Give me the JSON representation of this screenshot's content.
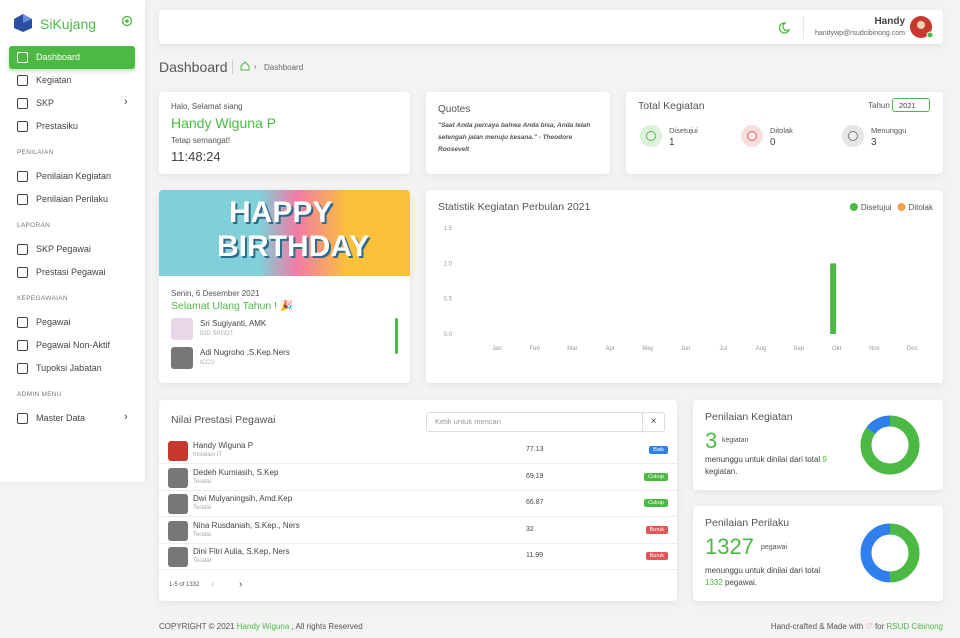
{
  "sidebar": {
    "brand": "SiKujang",
    "main": [
      {
        "label": "Dashboard",
        "active": true
      },
      {
        "label": "Kegiatan"
      },
      {
        "label": "SKP",
        "submenu": true
      },
      {
        "label": "Prestasiku"
      }
    ],
    "sections": [
      {
        "heading": "PENILAIAN",
        "items": [
          {
            "label": "Penilaian Kegiatan"
          },
          {
            "label": "Penilaian Perilaku"
          }
        ]
      },
      {
        "heading": "LAPORAN",
        "items": [
          {
            "label": "SKP Pegawai"
          },
          {
            "label": "Prestasi Pegawai"
          }
        ]
      },
      {
        "heading": "KEPEGAWAIAN",
        "items": [
          {
            "label": "Pegawai"
          },
          {
            "label": "Pegawai Non-Aktif"
          },
          {
            "label": "Tupoksi Jabatan"
          }
        ]
      },
      {
        "heading": "ADMIN MENU",
        "items": [
          {
            "label": "Master Data",
            "submenu": true
          }
        ]
      }
    ]
  },
  "header": {
    "user_name": "Handy",
    "user_email": "handywp@rsudcibinong.com"
  },
  "page": {
    "title": "Dashboard",
    "breadcrumb": "Dashboard"
  },
  "greeting": {
    "salutation": "Halo, Selamat siang",
    "name": "Handy Wiguna P",
    "message": "Tetap semangat!",
    "time": "11:48:24"
  },
  "quotes": {
    "title": "Quotes",
    "text": "\"Saat Anda percaya bahwa Anda bisa, Anda telah setengah jalan menuju kesana.\" - Theodore Roosevelt"
  },
  "total_kegiatan": {
    "title": "Total Kegiatan",
    "year_label": "Tahun",
    "year": "2021",
    "stats": [
      {
        "label": "Disetujui",
        "value": 1,
        "color": "#4cb944"
      },
      {
        "label": "Ditolak",
        "value": 0,
        "color": "#e05555"
      },
      {
        "label": "Menunggu",
        "value": 3,
        "color": "#777777"
      }
    ]
  },
  "birthday": {
    "banner": [
      "HAPPY",
      "BIRTHDAY"
    ],
    "date": "Senin, 6 Desember 2021",
    "heading": "Selamat Ulang Tahun ! 🎉",
    "people": [
      {
        "name": "Sri Sugiyanti, AMK",
        "unit": "IGD SPGDT"
      },
      {
        "name": "Adi Nugroho ,S.Kep.Ners",
        "unit": "ICCU"
      }
    ]
  },
  "chart_data": {
    "type": "bar",
    "title": "Statistik Kegiatan Perbulan 2021",
    "categories": [
      "Jan",
      "Feb",
      "Mar",
      "Apr",
      "May",
      "Jun",
      "Jul",
      "Aug",
      "Sep",
      "Okt",
      "Nov",
      "Des"
    ],
    "series": [
      {
        "name": "Disetujui",
        "color": "#4cb944",
        "values": [
          0,
          0,
          0,
          0,
          0,
          0,
          0,
          0,
          0,
          1,
          0,
          0
        ]
      },
      {
        "name": "Ditolak",
        "color": "#f0a04b",
        "values": [
          0,
          0,
          0,
          0,
          0,
          0,
          0,
          0,
          0,
          0,
          0,
          0
        ]
      }
    ],
    "ylim": [
      0,
      1.5
    ],
    "yticks": [
      {
        "value": 0,
        "label": "0.0"
      },
      {
        "value": 0.5,
        "label": "0.5"
      },
      {
        "value": 1,
        "label": "1.0"
      },
      {
        "value": 1.5,
        "label": "1.5"
      }
    ],
    "legend": "top-right"
  },
  "table": {
    "title": "Nilai Prestasi Pegawai",
    "search_placeholder": "Ketik untuk mencari",
    "clear": "×",
    "rows": [
      {
        "name": "Handy Wiguna P",
        "unit": "Instalasi IT",
        "score": 77.13,
        "badge": "Baik",
        "badge_color": "#2f80ed"
      },
      {
        "name": "Dedeh Kurniasih, S.Kep",
        "unit": "Teratai",
        "score": 69.19,
        "badge": "Cukup",
        "badge_color": "#4cb944"
      },
      {
        "name": "Dwi Mulyaningsih, Amd.Kep",
        "unit": "Teratai",
        "score": 66.87,
        "badge": "Cukup",
        "badge_color": "#4cb944"
      },
      {
        "name": "Nina Rusdaniah, S.Kep., Ners",
        "unit": "Teratai",
        "score": 32,
        "badge": "Buruk",
        "badge_color": "#e05555"
      },
      {
        "name": "Dini Fitri Aulia, S.Kep, Ners",
        "unit": "Teratai",
        "score": 11.99,
        "badge": "Buruk",
        "badge_color": "#e05555"
      }
    ],
    "pagination": "1-5 of 1332"
  },
  "penilaian_kegiatan": {
    "title": "Penilaian Kegiatan",
    "count": 3,
    "unit": "kegiatan",
    "text": "menunggu untuk dinilai dari total",
    "total": 9,
    "suffix": "kegiatan.",
    "donut": [
      85,
      15
    ],
    "donut_colors": [
      "#4cb944",
      "#2f80ed"
    ]
  },
  "penilaian_perilaku": {
    "title": "Penilaian Perilaku",
    "count": 1327,
    "unit": "pegawai",
    "text": "menunggu untuk dinilai dari total",
    "total": 1332,
    "suffix": "pegawai.",
    "donut": [
      50,
      50
    ],
    "donut_colors": [
      "#4cb944",
      "#2f80ed"
    ]
  },
  "footer": {
    "copyright": "COPYRIGHT © 2021",
    "author": "Handy Wiguna",
    "rights": ", All rights Reserved",
    "crafted": "Hand-crafted & Made with",
    "for": "for",
    "org": "RSUD Cibinong"
  }
}
